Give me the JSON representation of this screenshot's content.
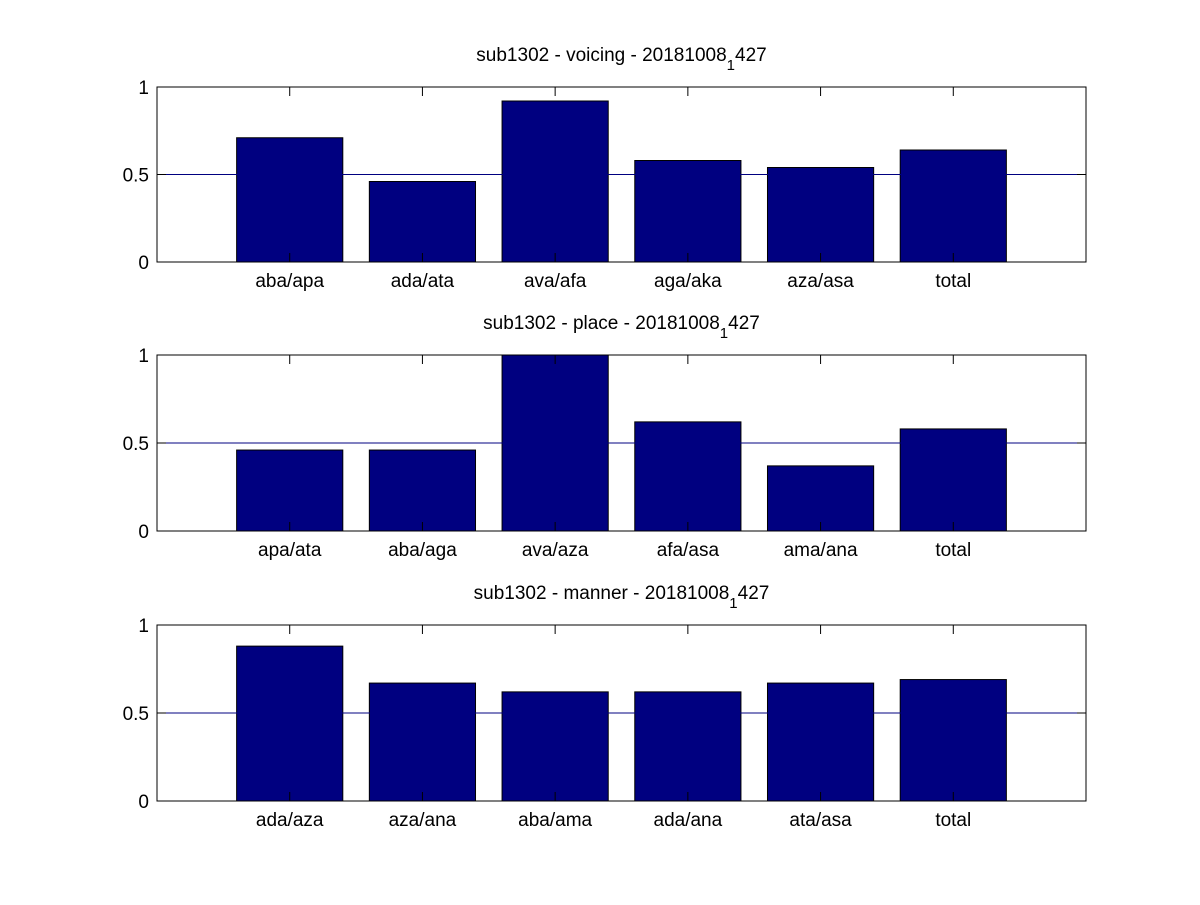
{
  "colors": {
    "bar": "#000080",
    "reference_line": "#000080",
    "axis": "#000000",
    "background": "#ffffff"
  },
  "chart_data": [
    {
      "type": "bar",
      "title": {
        "prefix": "sub1302 - voicing - 20181008",
        "subscript": "1",
        "suffix": "427"
      },
      "categories": [
        "aba/apa",
        "ada/ata",
        "ava/afa",
        "aga/aka",
        "aza/asa",
        "total"
      ],
      "values": [
        0.71,
        0.46,
        0.92,
        0.58,
        0.54,
        0.64
      ],
      "ylim": [
        0,
        1
      ],
      "yticks": [
        "0",
        "0.5",
        "1"
      ],
      "reference_line": 0.5,
      "grid": false,
      "legend": false
    },
    {
      "type": "bar",
      "title": {
        "prefix": "sub1302 - place - 20181008",
        "subscript": "1",
        "suffix": "427"
      },
      "categories": [
        "apa/ata",
        "aba/aga",
        "ava/aza",
        "afa/asa",
        "ama/ana",
        "total"
      ],
      "values": [
        0.46,
        0.46,
        1.0,
        0.62,
        0.37,
        0.58
      ],
      "ylim": [
        0,
        1
      ],
      "yticks": [
        "0",
        "0.5",
        "1"
      ],
      "reference_line": 0.5,
      "grid": false,
      "legend": false
    },
    {
      "type": "bar",
      "title": {
        "prefix": "sub1302 - manner - 20181008",
        "subscript": "1",
        "suffix": "427"
      },
      "categories": [
        "ada/aza",
        "aza/ana",
        "aba/ama",
        "ada/ana",
        "ata/asa",
        "total"
      ],
      "values": [
        0.88,
        0.67,
        0.62,
        0.62,
        0.67,
        0.69
      ],
      "ylim": [
        0,
        1
      ],
      "yticks": [
        "0",
        "0.5",
        "1"
      ],
      "reference_line": 0.5,
      "grid": false,
      "legend": false
    }
  ]
}
